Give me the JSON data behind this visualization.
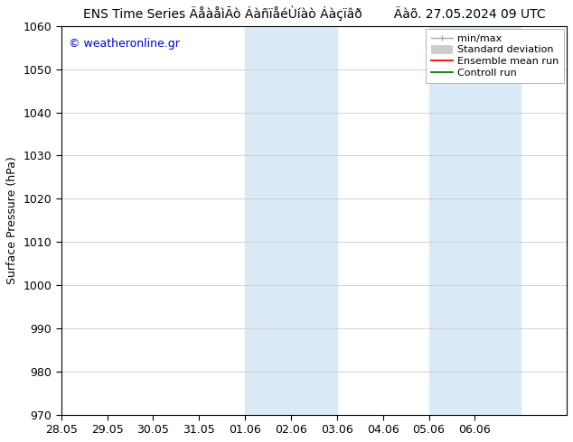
{
  "title_left": "ENS Time Series ÄåàåìÃò ÁàñïåéÙíàò Áàçïâð",
  "title_right": "Äàõ. 27.05.2024 09 UTC",
  "ylabel": "Surface Pressure (hPa)",
  "ylim": [
    970,
    1060
  ],
  "yticks": [
    970,
    980,
    990,
    1000,
    1010,
    1020,
    1030,
    1040,
    1050,
    1060
  ],
  "watermark": "© weatheronline.gr",
  "bg_color": "#ffffff",
  "plot_bg_color": "#ffffff",
  "shaded_bands": [
    {
      "x_start": "2024-06-01",
      "x_end": "2024-06-03",
      "color": "#daeaf7"
    },
    {
      "x_start": "2024-06-05",
      "x_end": "2024-06-07",
      "color": "#daeaf7"
    }
  ],
  "x_start": "2024-05-28",
  "x_end": "2024-06-07",
  "xtick_labels": [
    "28.05",
    "29.05",
    "30.05",
    "31.05",
    "01.06",
    "02.06",
    "03.06",
    "04.06",
    "05.06",
    "06.06"
  ],
  "xtick_dates": [
    "2024-05-28",
    "2024-05-29",
    "2024-05-30",
    "2024-05-31",
    "2024-06-01",
    "2024-06-02",
    "2024-06-03",
    "2024-06-04",
    "2024-06-05",
    "2024-06-06"
  ],
  "legend_labels": [
    "min/max",
    "Standard deviation",
    "Ensemble mean run",
    "Controll run"
  ],
  "legend_colors": [
    "#aaaaaa",
    "#cccccc",
    "#ff0000",
    "#008000"
  ],
  "grid_color": "#cccccc",
  "tick_color": "#000000",
  "axis_font_size": 9,
  "title_font_size": 10,
  "legend_font_size": 8,
  "watermark_color": "#0000cc",
  "watermark_font_size": 9
}
